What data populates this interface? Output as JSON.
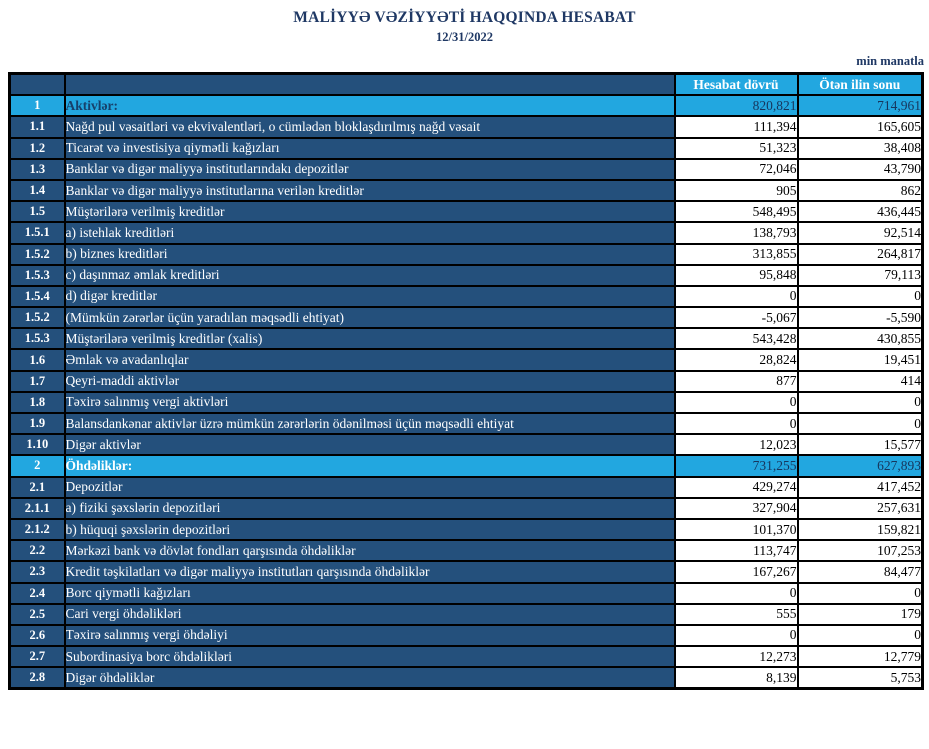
{
  "header": {
    "title": "MALİYYƏ VƏZİYYƏTİ HAQQINDA HESABAT",
    "date": "12/31/2022",
    "unit_note": "min manatla"
  },
  "columns": {
    "current": "Hesabat dövrü",
    "previous": "Ötən ilin sonu"
  },
  "colors": {
    "accent_cyan": "#22A7E0",
    "row_navy": "#24507C",
    "title_navy": "#1F3864",
    "grid": "#000000"
  },
  "rows": [
    {
      "id": "1",
      "label": "Aktivlər:",
      "current": "820,821",
      "previous": "714,961",
      "section": true,
      "label_dark": true
    },
    {
      "id": "1.1",
      "label": "Nağd pul vəsaitləri və  ekvivalentləri, o cümlədən bloklaşdırılmış nağd vəsait",
      "current": "111,394",
      "previous": "165,605",
      "section": false,
      "label_dark": false
    },
    {
      "id": "1.2",
      "label": "Ticarət və investisiya qiymətli kağızları",
      "current": "51,323",
      "previous": "38,408",
      "section": false,
      "label_dark": false
    },
    {
      "id": "1.3",
      "label": "Banklar və digər maliyyə institutlarındakı depozitlər",
      "current": "72,046",
      "previous": "43,790",
      "section": false,
      "label_dark": false
    },
    {
      "id": "1.4",
      "label": "Banklar və digər maliyyə institutlarına verilən kreditlər",
      "current": "905",
      "previous": "862",
      "section": false,
      "label_dark": false
    },
    {
      "id": "1.5",
      "label": "Müştərilərə verilmiş kreditlər",
      "current": "548,495",
      "previous": "436,445",
      "section": false,
      "label_dark": false
    },
    {
      "id": "1.5.1",
      "label": "a) istehlak kreditləri",
      "current": "138,793",
      "previous": "92,514",
      "section": false,
      "label_dark": false
    },
    {
      "id": "1.5.2",
      "label": "b) biznes kreditləri",
      "current": "313,855",
      "previous": "264,817",
      "section": false,
      "label_dark": false
    },
    {
      "id": "1.5.3",
      "label": "c) daşınmaz əmlak kreditləri",
      "current": "95,848",
      "previous": "79,113",
      "section": false,
      "label_dark": false
    },
    {
      "id": "1.5.4",
      "label": "d) digər kreditlər",
      "current": "0",
      "previous": "0",
      "section": false,
      "label_dark": false
    },
    {
      "id": "1.5.2",
      "label": "(Mümkün zərərlər üçün yaradılan məqsədli ehtiyat)",
      "current": "-5,067",
      "previous": "-5,590",
      "section": false,
      "label_dark": false
    },
    {
      "id": "1.5.3",
      "label": "Müştərilərə verilmiş kreditlər (xalis)",
      "current": "543,428",
      "previous": "430,855",
      "section": false,
      "label_dark": false
    },
    {
      "id": "1.6",
      "label": "Əmlak və avadanlıqlar",
      "current": "28,824",
      "previous": "19,451",
      "section": false,
      "label_dark": false
    },
    {
      "id": "1.7",
      "label": "Qeyri-maddi aktivlər",
      "current": "877",
      "previous": "414",
      "section": false,
      "label_dark": false
    },
    {
      "id": "1.8",
      "label": "Təxirə salınmış vergi aktivləri",
      "current": "0",
      "previous": "0",
      "section": false,
      "label_dark": false
    },
    {
      "id": "1.9",
      "label": "Balansdankənar aktivlər üzrə mümkün zərərlərin ödənilməsi üçün məqsədli ehtiyat",
      "current": "0",
      "previous": "0",
      "section": false,
      "label_dark": false
    },
    {
      "id": "1.10",
      "label": "Digər aktivlər",
      "current": "12,023",
      "previous": "15,577",
      "section": false,
      "label_dark": false
    },
    {
      "id": "2",
      "label": "Öhdəliklər:",
      "current": "731,255",
      "previous": "627,893",
      "section": true,
      "label_dark": false
    },
    {
      "id": "2.1",
      "label": "Depozitlər",
      "current": "429,274",
      "previous": "417,452",
      "section": false,
      "label_dark": false
    },
    {
      "id": "2.1.1",
      "label": "a) fiziki şəxslərin depozitləri",
      "current": "327,904",
      "previous": "257,631",
      "section": false,
      "label_dark": false
    },
    {
      "id": "2.1.2",
      "label": "b) hüquqi şəxslərin depozitləri",
      "current": "101,370",
      "previous": "159,821",
      "section": false,
      "label_dark": false
    },
    {
      "id": "2.2",
      "label": "Mərkəzi bank və dövlət fondları qarşısında öhdəliklər",
      "current": "113,747",
      "previous": "107,253",
      "section": false,
      "label_dark": false
    },
    {
      "id": "2.3",
      "label": "Kredit təşkilatları və digər maliyyə institutları qarşısında öhdəliklər",
      "current": "167,267",
      "previous": "84,477",
      "section": false,
      "label_dark": false
    },
    {
      "id": "2.4",
      "label": "Borc qiymətli kağızları",
      "current": "0",
      "previous": "0",
      "section": false,
      "label_dark": false
    },
    {
      "id": "2.5",
      "label": "Cari vergi öhdəlikləri",
      "current": "555",
      "previous": "179",
      "section": false,
      "label_dark": false
    },
    {
      "id": "2.6",
      "label": "Təxirə salınmış vergi öhdəliyi",
      "current": "0",
      "previous": "0",
      "section": false,
      "label_dark": false
    },
    {
      "id": "2.7",
      "label": "Subordinasiya borc öhdəlikləri",
      "current": "12,273",
      "previous": "12,779",
      "section": false,
      "label_dark": false
    },
    {
      "id": "2.8",
      "label": "Digər öhdəliklər",
      "current": "8,139",
      "previous": "5,753",
      "section": false,
      "label_dark": false
    }
  ]
}
